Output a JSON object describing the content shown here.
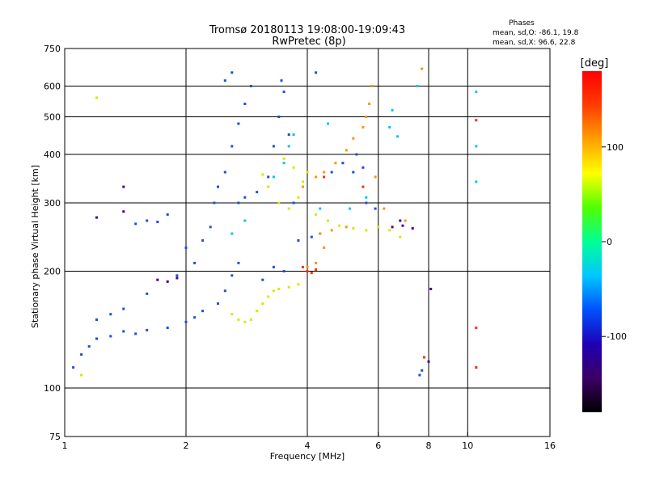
{
  "chart_data": {
    "type": "scatter",
    "title": "Tromsø 20180113 19:08:00-19:09:43",
    "subtitle": "RwPretec (8p)",
    "xlabel": "Frequency [MHz]",
    "ylabel": "Stationary phase Virtual Height [km]",
    "x_scale": "log",
    "y_scale": "log",
    "xlim": [
      1,
      16
    ],
    "ylim": [
      75,
      750
    ],
    "x_ticks": [
      1,
      2,
      4,
      6,
      8,
      10,
      16
    ],
    "x_tick_labels": [
      "1",
      "2",
      "4",
      "6",
      "8",
      "10",
      "16"
    ],
    "y_ticks": [
      75,
      100,
      200,
      300,
      400,
      500,
      600,
      750
    ],
    "y_tick_labels": [
      "75",
      "100",
      "200",
      "300",
      "400",
      "500",
      "600",
      "750"
    ],
    "x_gridlines": [
      2,
      4,
      6,
      8,
      10
    ],
    "y_gridlines": [
      100,
      200,
      300,
      400,
      500,
      600
    ],
    "grid": true,
    "phase_stats": {
      "title": "Phases",
      "line_o": "mean, sd,O: -86.1, 19.8",
      "line_x": "mean, sd,X:  96.6, 22.8"
    },
    "colorbar": {
      "label": "[deg]",
      "range": [
        -180,
        180
      ],
      "ticks": [
        100,
        0,
        -100
      ],
      "tick_labels": [
        "100",
        "0",
        "-100"
      ],
      "colormap": [
        "#000000",
        "#3c0064",
        "#1e00b4",
        "#0050ff",
        "#00c8ff",
        "#00ff96",
        "#50ff00",
        "#ffff00",
        "#ffa000",
        "#ff3c00",
        "#ff0000"
      ]
    },
    "series": [
      {
        "color": "#1a4fe0",
        "points": [
          [
            1.05,
            113
          ],
          [
            1.1,
            122
          ],
          [
            1.15,
            128
          ],
          [
            1.2,
            134
          ],
          [
            1.3,
            136
          ],
          [
            1.4,
            140
          ],
          [
            1.5,
            138
          ],
          [
            1.6,
            141
          ],
          [
            1.8,
            143
          ],
          [
            2.0,
            148
          ],
          [
            2.1,
            152
          ],
          [
            2.2,
            158
          ],
          [
            2.4,
            165
          ],
          [
            2.5,
            178
          ],
          [
            2.6,
            195
          ],
          [
            2.7,
            210
          ],
          [
            2.2,
            240
          ],
          [
            2.3,
            260
          ],
          [
            2.35,
            300
          ],
          [
            2.4,
            330
          ],
          [
            2.5,
            360
          ],
          [
            2.6,
            420
          ],
          [
            2.7,
            480
          ],
          [
            2.8,
            540
          ],
          [
            2.9,
            600
          ],
          [
            2.5,
            620
          ],
          [
            2.6,
            650
          ],
          [
            2.7,
            300
          ],
          [
            2.8,
            310
          ],
          [
            3.0,
            320
          ],
          [
            3.2,
            350
          ],
          [
            3.3,
            420
          ],
          [
            3.4,
            500
          ],
          [
            3.5,
            580
          ],
          [
            3.45,
            620
          ],
          [
            3.6,
            450
          ],
          [
            3.7,
            300
          ],
          [
            3.8,
            240
          ],
          [
            4.1,
            245
          ],
          [
            4.3,
            250
          ],
          [
            4.6,
            360
          ],
          [
            4.9,
            380
          ],
          [
            5.2,
            360
          ],
          [
            5.5,
            370
          ],
          [
            5.6,
            300
          ],
          [
            5.9,
            290
          ],
          [
            5.3,
            400
          ],
          [
            1.5,
            265
          ],
          [
            1.6,
            270
          ],
          [
            1.7,
            268
          ],
          [
            1.8,
            280
          ],
          [
            2.0,
            230
          ],
          [
            2.1,
            210
          ],
          [
            1.9,
            195
          ],
          [
            1.4,
            160
          ],
          [
            1.6,
            175
          ],
          [
            1.2,
            150
          ],
          [
            1.3,
            155
          ],
          [
            7.6,
            108
          ],
          [
            7.7,
            111
          ],
          [
            4.2,
            650
          ],
          [
            3.1,
            190
          ],
          [
            3.3,
            205
          ],
          [
            3.5,
            200
          ]
        ]
      },
      {
        "color": "#00c8e8",
        "points": [
          [
            2.6,
            250
          ],
          [
            2.8,
            270
          ],
          [
            3.3,
            350
          ],
          [
            3.5,
            380
          ],
          [
            3.6,
            420
          ],
          [
            3.7,
            450
          ],
          [
            5.1,
            290
          ],
          [
            5.6,
            310
          ],
          [
            4.3,
            290
          ],
          [
            4.5,
            480
          ],
          [
            6.5,
            520
          ],
          [
            7.5,
            600
          ],
          [
            10.5,
            580
          ],
          [
            10.5,
            340
          ],
          [
            10.5,
            420
          ],
          [
            10.5,
            113
          ],
          [
            6.4,
            470
          ],
          [
            6.7,
            445
          ]
        ]
      },
      {
        "color": "#d8e800",
        "points": [
          [
            2.6,
            155
          ],
          [
            2.7,
            150
          ],
          [
            2.8,
            148
          ],
          [
            2.9,
            150
          ],
          [
            3.0,
            158
          ],
          [
            3.1,
            165
          ],
          [
            3.2,
            172
          ],
          [
            3.3,
            178
          ],
          [
            3.4,
            180
          ],
          [
            3.6,
            182
          ],
          [
            3.8,
            185
          ],
          [
            3.1,
            355
          ],
          [
            3.2,
            330
          ],
          [
            3.4,
            300
          ],
          [
            3.6,
            290
          ],
          [
            3.8,
            310
          ],
          [
            3.9,
            340
          ],
          [
            4.2,
            280
          ],
          [
            4.5,
            270
          ],
          [
            4.8,
            262
          ],
          [
            5.2,
            258
          ],
          [
            5.6,
            255
          ],
          [
            6.0,
            260
          ],
          [
            6.4,
            255
          ],
          [
            6.8,
            245
          ],
          [
            3.5,
            390
          ],
          [
            3.7,
            370
          ],
          [
            4.0,
            360
          ],
          [
            1.2,
            560
          ],
          [
            1.1,
            108
          ]
        ]
      },
      {
        "color": "#ff9400",
        "points": [
          [
            4.2,
            350
          ],
          [
            4.4,
            360
          ],
          [
            4.7,
            380
          ],
          [
            5.0,
            410
          ],
          [
            5.2,
            440
          ],
          [
            5.5,
            470
          ],
          [
            5.6,
            500
          ],
          [
            5.7,
            540
          ],
          [
            5.8,
            600
          ],
          [
            4.3,
            250
          ],
          [
            4.6,
            255
          ],
          [
            5.0,
            260
          ],
          [
            4.2,
            210
          ],
          [
            4.0,
            205
          ],
          [
            6.2,
            290
          ],
          [
            7.0,
            270
          ],
          [
            7.7,
            665
          ],
          [
            5.9,
            350
          ],
          [
            3.9,
            330
          ],
          [
            4.4,
            230
          ]
        ]
      },
      {
        "color": "#ff3000",
        "points": [
          [
            3.9,
            205
          ],
          [
            4.0,
            200
          ],
          [
            4.1,
            198
          ],
          [
            4.2,
            202
          ],
          [
            4.4,
            350
          ],
          [
            5.5,
            330
          ],
          [
            7.8,
            120
          ],
          [
            10.5,
            490
          ],
          [
            10.5,
            143
          ],
          [
            10.5,
            113
          ]
        ]
      },
      {
        "color": "#4a0094",
        "points": [
          [
            1.7,
            190
          ],
          [
            1.8,
            188
          ],
          [
            1.9,
            192
          ],
          [
            1.4,
            330
          ],
          [
            1.4,
            285
          ],
          [
            1.2,
            275
          ],
          [
            6.5,
            260
          ],
          [
            6.8,
            270
          ],
          [
            6.9,
            262
          ],
          [
            7.3,
            258
          ],
          [
            8.1,
            180
          ],
          [
            8.0,
            117
          ]
        ]
      }
    ]
  }
}
